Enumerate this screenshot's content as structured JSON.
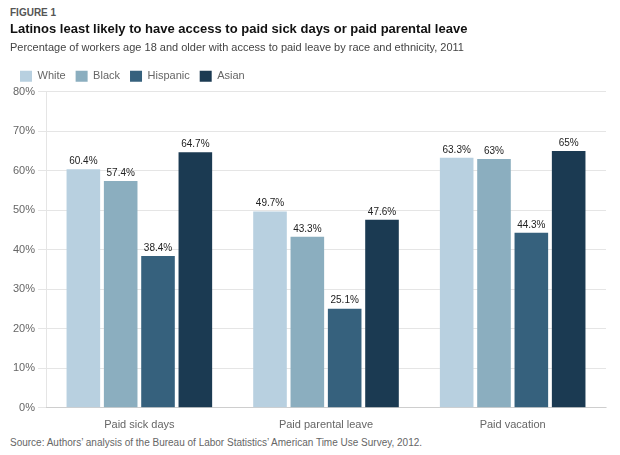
{
  "chart_data": {
    "type": "bar",
    "title": "Latinos least likely to have access to paid sick days or paid parental leave",
    "subtitle": "Percentage of workers age 18 and older with access to paid leave by race and ethnicity, 2011",
    "annotations": [
      "FIGURE 1",
      "Source: Authors’ analysis of the Bureau of Labor Statistics’ American Time Use Survey, 2012."
    ],
    "categories": [
      "Paid sick days",
      "Paid parental leave",
      "Paid vacation"
    ],
    "series": [
      {
        "name": "White",
        "color": "#b8d0e0",
        "values": [
          60.4,
          49.7,
          63.3
        ],
        "value_labels": [
          "60.4%",
          "49.7%",
          "63.3%"
        ]
      },
      {
        "name": "Black",
        "color": "#8baebf",
        "values": [
          57.4,
          43.3,
          63.0
        ],
        "value_labels": [
          "57.4%",
          "43.3%",
          "63%"
        ]
      },
      {
        "name": "Hispanic",
        "color": "#36617d",
        "values": [
          38.4,
          25.1,
          44.3
        ],
        "value_labels": [
          "38.4%",
          "25.1%",
          "44.3%"
        ]
      },
      {
        "name": "Asian",
        "color": "#1b3a52",
        "values": [
          64.7,
          47.6,
          65.0
        ],
        "value_labels": [
          "64.7%",
          "47.6%",
          "65%"
        ]
      }
    ],
    "ylim": [
      0,
      80
    ],
    "yticks": [
      {
        "value": 0,
        "label": "0%"
      },
      {
        "value": 10,
        "label": "10%"
      },
      {
        "value": 20,
        "label": "20%"
      },
      {
        "value": 30,
        "label": "30%"
      },
      {
        "value": 40,
        "label": "40%"
      },
      {
        "value": 50,
        "label": "50%"
      },
      {
        "value": 60,
        "label": "60%"
      },
      {
        "value": 70,
        "label": "70%"
      },
      {
        "value": 80,
        "label": "80%"
      }
    ],
    "grid": true,
    "legend": "upper left",
    "data_labels": true
  }
}
